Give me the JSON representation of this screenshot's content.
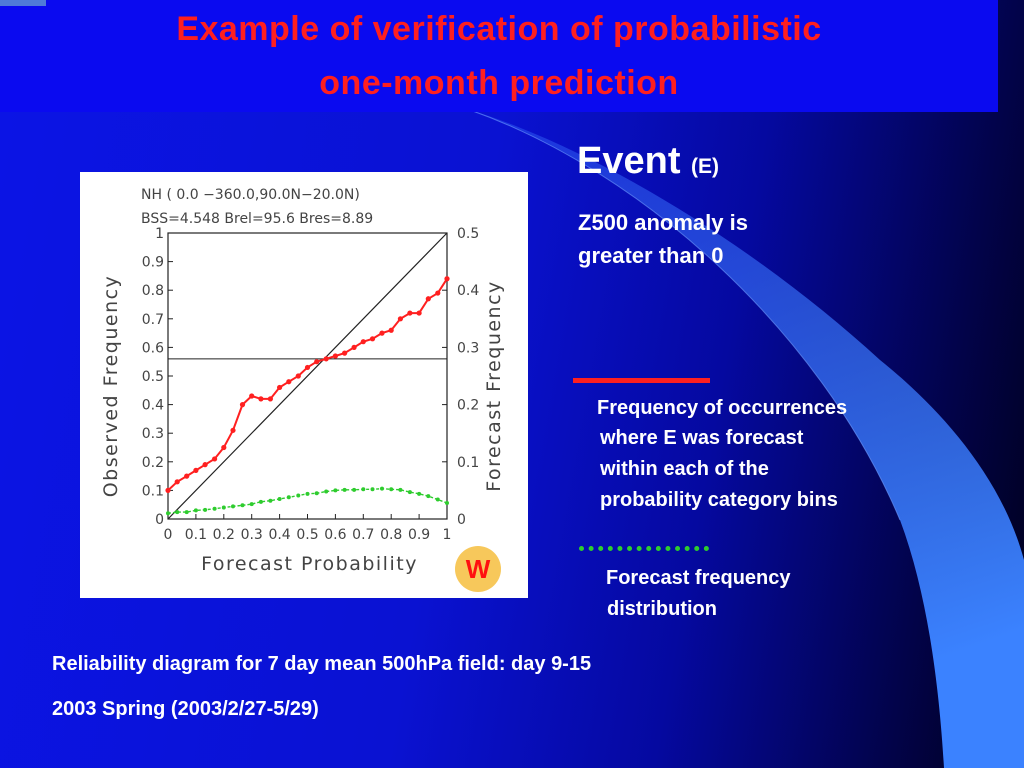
{
  "slide": {
    "title_line1": "Example of verification of probabilistic",
    "title_line2": "one-month prediction",
    "event_word": "Event",
    "event_tag": "(E)",
    "event_desc_line1": "Z500 anomaly is",
    "event_desc_line2": "greater than 0",
    "legend_red_text": [
      "Frequency of occurrences",
      "where E was forecast",
      "within each of the",
      "probability category bins"
    ],
    "legend_green_text": [
      "Forecast frequency",
      "distribution"
    ],
    "caption_line1": "Reliability diagram for 7 day mean 500hPa field: day 9-15",
    "caption_line2": "2003 Spring (2003/2/27-5/29)",
    "badge": "W",
    "colors": {
      "title": "#ff1f1f",
      "observed_series": "#ff2020",
      "forecast_series": "#2ecc2e",
      "background": "#0a0af0"
    }
  },
  "chart_data": {
    "type": "line",
    "header_line1": "NH (   0.0  −360.0,90.0N−20.0N)",
    "header_line2": "BSS=4.548     Brel=95.6     Bres=8.89",
    "xlabel": "Forecast Probability",
    "ylabel_left": "Observed Frequency",
    "ylabel_right": "Forecast Frequency",
    "xlim": [
      0,
      1
    ],
    "ylim_left": [
      0,
      1
    ],
    "ylim_right": [
      0,
      0.5
    ],
    "x_ticks": [
      "0",
      "0.1",
      "0.2",
      "0.3",
      "0.4",
      "0.5",
      "0.6",
      "0.7",
      "0.8",
      "0.9",
      "1"
    ],
    "y_ticks_left": [
      "0",
      "0.1",
      "0.2",
      "0.3",
      "0.4",
      "0.5",
      "0.6",
      "0.7",
      "0.8",
      "0.9",
      "1"
    ],
    "y_ticks_right": [
      "0",
      "0.1",
      "0.2",
      "0.3",
      "0.4",
      "0.5"
    ],
    "climatology_line": 0.56,
    "diagonal": [
      [
        0,
        0
      ],
      [
        1,
        1
      ]
    ],
    "series": [
      {
        "name": "Frequency of occurrences where E was forecast within each of the probability category bins",
        "axis": "left",
        "x": [
          0,
          0.033,
          0.067,
          0.1,
          0.133,
          0.167,
          0.2,
          0.233,
          0.267,
          0.3,
          0.333,
          0.367,
          0.4,
          0.433,
          0.467,
          0.5,
          0.533,
          0.567,
          0.6,
          0.633,
          0.667,
          0.7,
          0.733,
          0.767,
          0.8,
          0.833,
          0.867,
          0.9,
          0.933,
          0.967,
          1.0
        ],
        "y": [
          0.1,
          0.13,
          0.15,
          0.17,
          0.19,
          0.21,
          0.25,
          0.31,
          0.4,
          0.43,
          0.42,
          0.42,
          0.46,
          0.48,
          0.5,
          0.53,
          0.55,
          0.56,
          0.57,
          0.58,
          0.6,
          0.62,
          0.63,
          0.65,
          0.66,
          0.7,
          0.72,
          0.72,
          0.77,
          0.79,
          0.84
        ]
      },
      {
        "name": "Forecast frequency distribution",
        "axis": "right",
        "x": [
          0,
          0.033,
          0.067,
          0.1,
          0.133,
          0.167,
          0.2,
          0.233,
          0.267,
          0.3,
          0.333,
          0.367,
          0.4,
          0.433,
          0.467,
          0.5,
          0.533,
          0.567,
          0.6,
          0.633,
          0.667,
          0.7,
          0.733,
          0.767,
          0.8,
          0.833,
          0.867,
          0.9,
          0.933,
          0.967,
          1.0
        ],
        "y": [
          0.01,
          0.012,
          0.012,
          0.015,
          0.016,
          0.018,
          0.02,
          0.022,
          0.024,
          0.026,
          0.03,
          0.032,
          0.035,
          0.038,
          0.041,
          0.044,
          0.045,
          0.048,
          0.05,
          0.051,
          0.051,
          0.052,
          0.052,
          0.053,
          0.052,
          0.051,
          0.047,
          0.044,
          0.04,
          0.034,
          0.028
        ]
      }
    ]
  }
}
